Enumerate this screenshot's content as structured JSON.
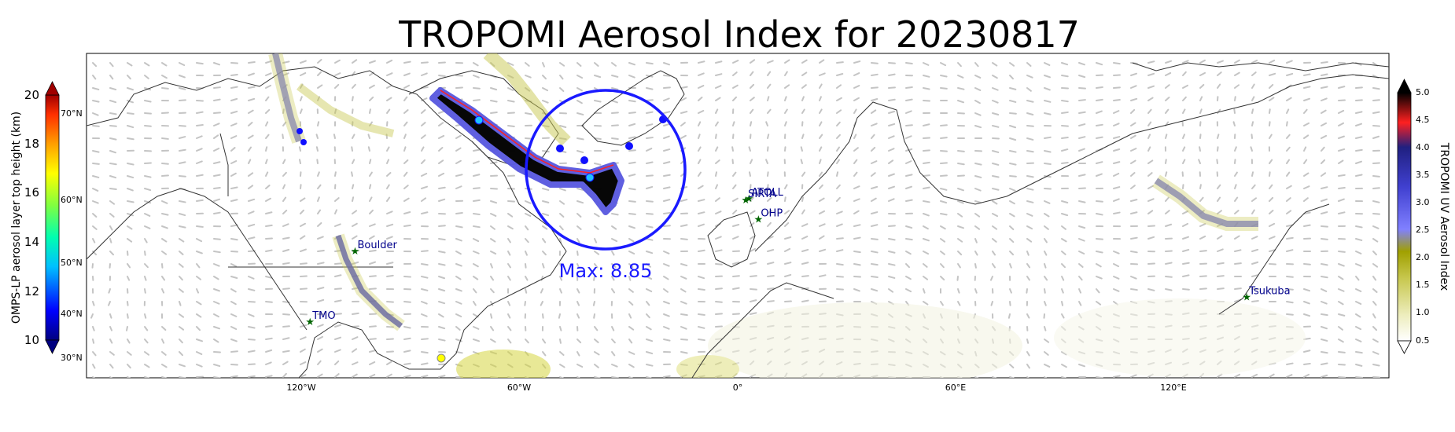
{
  "title": "TROPOMI Aerosol Index for 20230817",
  "max_label": "Max: 8.85",
  "max_color": "#1a1aff",
  "longitude_ticks": [
    "120°W",
    "60°W",
    "0°",
    "60°E",
    "120°E"
  ],
  "latitude_ticks": [
    "70°N",
    "60°N",
    "50°N",
    "40°N",
    "30°N"
  ],
  "stations": [
    {
      "name": "ATOLL",
      "lon": 3.1,
      "lat": 50.6
    },
    {
      "name": "SIRTA",
      "lon": 2.2,
      "lat": 48.7
    },
    {
      "name": "OHP",
      "lon": 5.7,
      "lat": 43.9
    },
    {
      "name": "Boulder",
      "lon": -105.3,
      "lat": 40.0
    },
    {
      "name": "TMO",
      "lon": -117.7,
      "lat": 34.4
    },
    {
      "name": "Tsukuba",
      "lon": 140.1,
      "lat": 36.1
    }
  ],
  "station_color": "#006400",
  "station_label_color": "#00008b",
  "left_colorbar": {
    "label": "OMPS-LP aerosol layer top height (km)",
    "ticks": [
      "20",
      "18",
      "16",
      "14",
      "12",
      "10"
    ],
    "colors": [
      "#000080",
      "#0000ff",
      "#00c0ff",
      "#00ffb0",
      "#80ff40",
      "#ffff00",
      "#ffa000",
      "#ff3000",
      "#a00000"
    ]
  },
  "right_colorbar": {
    "label": "TROPOMI UV Aerosol Index",
    "ticks": [
      "5.0",
      "4.5",
      "4.0",
      "3.5",
      "3.0",
      "2.5",
      "2.0",
      "1.5",
      "1.0",
      "0.5"
    ],
    "colors": [
      "#ffffff",
      "#eeeec0",
      "#c8c850",
      "#a0a000",
      "#8080ff",
      "#4040d0",
      "#202080",
      "#ff2020",
      "#000000"
    ]
  }
}
